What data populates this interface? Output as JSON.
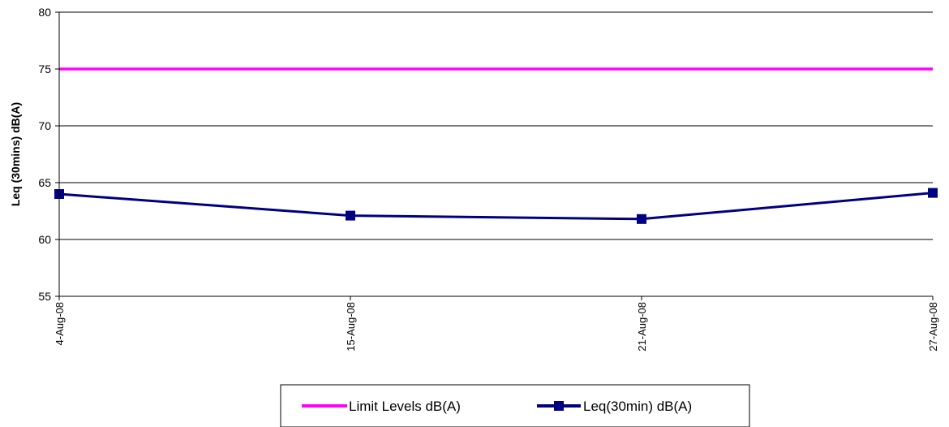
{
  "chart_data": {
    "type": "line",
    "title": "",
    "xlabel": "",
    "ylabel": "Leq (30mins) dB(A)",
    "categories": [
      "4-Aug-08",
      "15-Aug-08",
      "21-Aug-08",
      "27-Aug-08"
    ],
    "ylim": [
      55,
      80
    ],
    "yticks": [
      55,
      60,
      65,
      70,
      75,
      80
    ],
    "grid": true,
    "legend_position": "bottom",
    "series": [
      {
        "name": "Limit Levels dB(A)",
        "values": [
          75,
          75,
          75,
          75
        ],
        "color": "#ff00ff",
        "marker": "none"
      },
      {
        "name": "Leq(30min) dB(A)",
        "values": [
          64.0,
          62.1,
          61.8,
          64.1
        ],
        "color": "#000080",
        "marker": "square"
      }
    ]
  }
}
